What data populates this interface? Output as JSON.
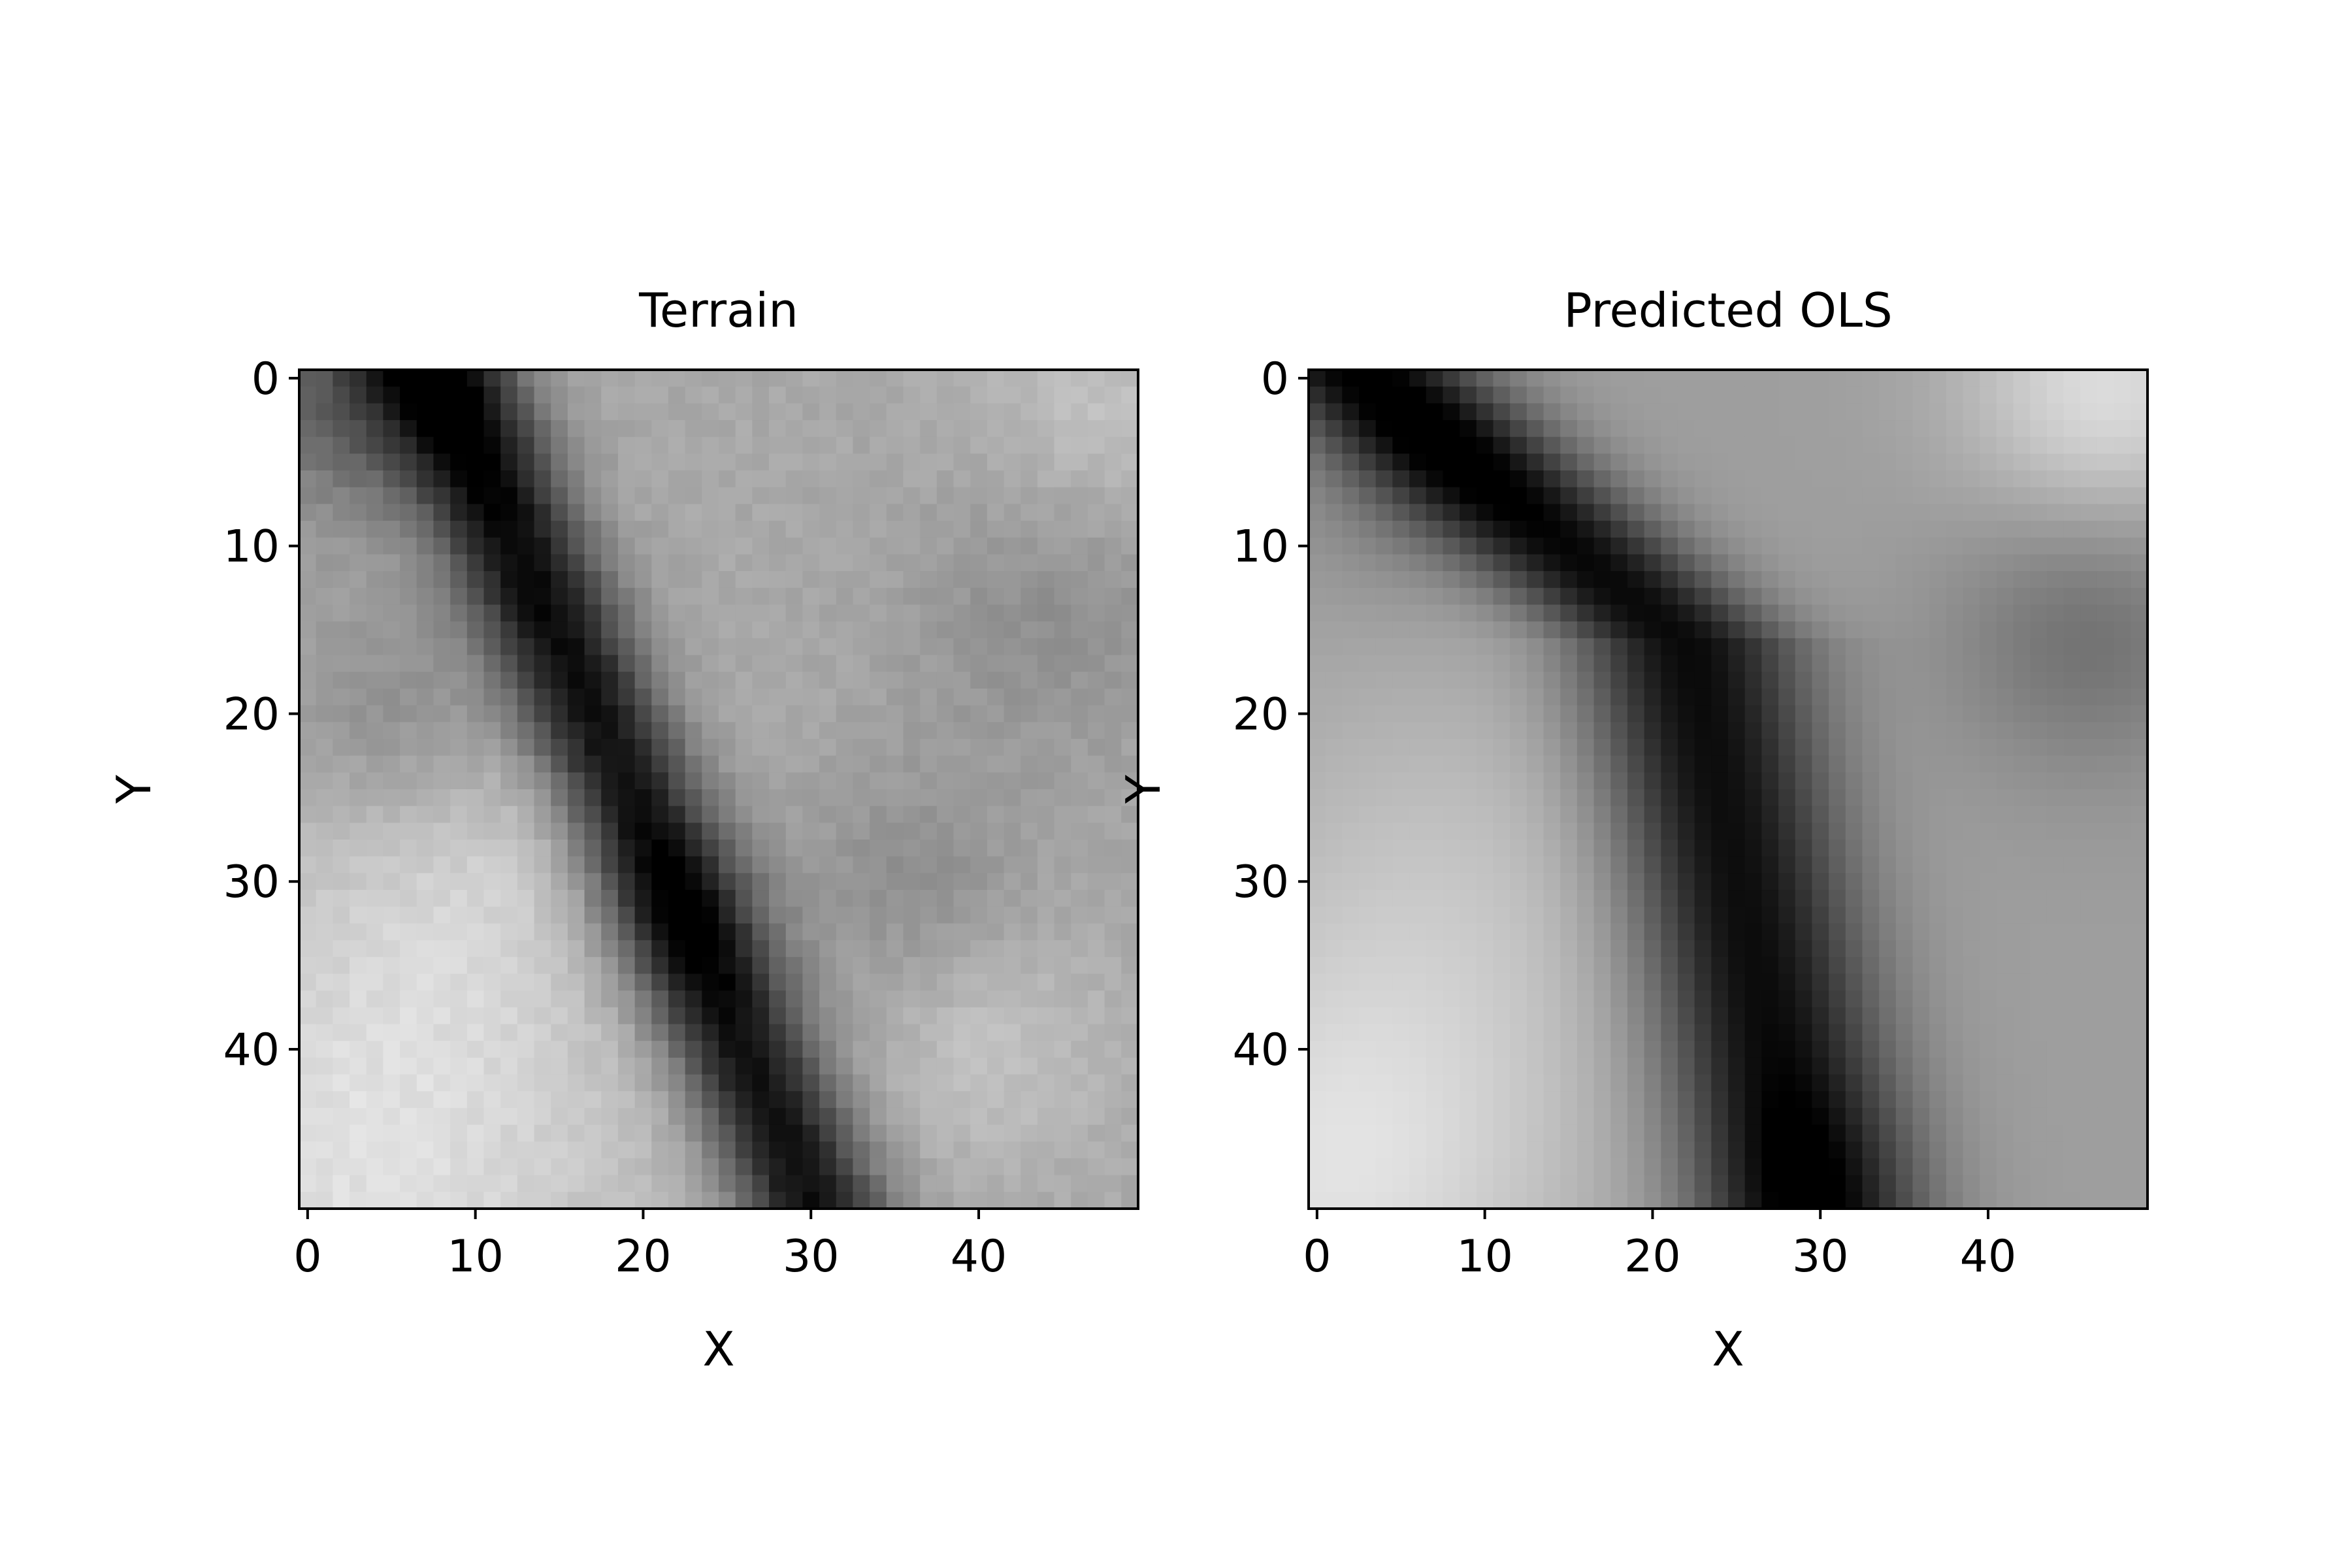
{
  "chart_data": [
    {
      "type": "heatmap",
      "title": "Terrain",
      "xlabel": "X",
      "ylabel": "Y",
      "colormap": "gray",
      "grid": false,
      "xlim": [
        -0.5,
        49.5
      ],
      "ylim": [
        49.5,
        -0.5
      ],
      "xticks": [
        0,
        10,
        20,
        30,
        40
      ],
      "yticks": [
        0,
        10,
        20,
        30,
        40
      ],
      "grid_size": [
        50,
        50
      ],
      "value_range": [
        0,
        1
      ],
      "cells": {
        "rows": 50,
        "cols": 50,
        "description_free_model": "dark valley band running diagonally from top-left (x~8,y~0) to bottom-center (x~30,y~49); brighter terrain at lower-left and upper-right; mid-gray plateau at right"
      }
    },
    {
      "type": "heatmap",
      "title": "Predicted OLS",
      "xlabel": "X",
      "ylabel": "Y",
      "colormap": "gray",
      "grid": false,
      "xlim": [
        -0.5,
        49.5
      ],
      "ylim": [
        49.5,
        -0.5
      ],
      "xticks": [
        0,
        10,
        20,
        30,
        40
      ],
      "yticks": [
        0,
        10,
        20,
        30,
        40
      ],
      "grid_size": [
        50,
        50
      ],
      "value_range": [
        0,
        1
      ]
    }
  ],
  "colors": {
    "axis": "#000000",
    "background": "#ffffff"
  }
}
